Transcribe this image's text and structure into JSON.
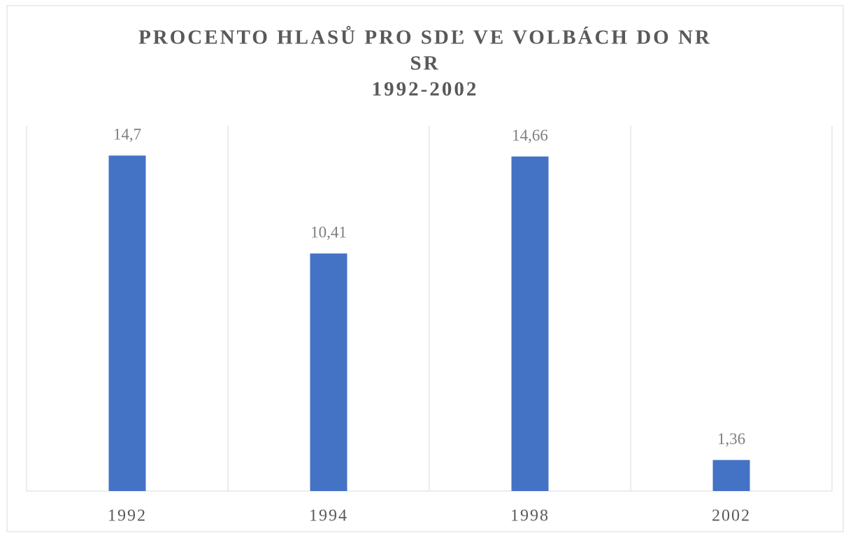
{
  "chart_data": {
    "type": "bar",
    "title": [
      "PROCENTO HLASŮ PRO SDĽ VE VOLBÁCH DO NR",
      "SR",
      "1992-2002"
    ],
    "categories": [
      "1992",
      "1994",
      "1998",
      "2002"
    ],
    "values": [
      14.7,
      10.41,
      14.66,
      1.36
    ],
    "value_labels": [
      "14,7",
      "10,41",
      "14,66",
      "1,36"
    ],
    "color": "#4472c4",
    "ylim": [
      0,
      16
    ]
  }
}
